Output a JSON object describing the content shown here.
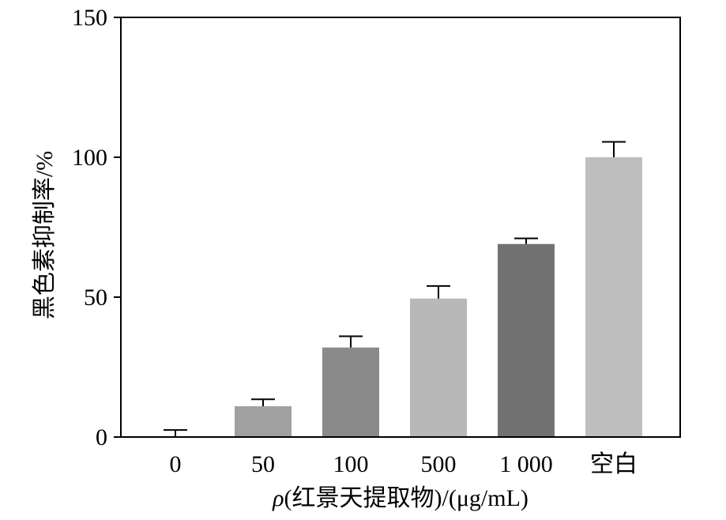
{
  "chart_data": {
    "type": "bar",
    "title": "",
    "xlabel_symbol": "ρ",
    "xlabel_rest": "(红景天提取物)/(μg/mL)",
    "ylabel": "黑色素抑制率/%",
    "ylim": [
      0,
      150
    ],
    "yticks": [
      "0",
      "50",
      "100",
      "150"
    ],
    "categories": [
      "0",
      "50",
      "100",
      "500",
      "1 000",
      "空白"
    ],
    "values": [
      0,
      11,
      32,
      49.5,
      69,
      100
    ],
    "errors": [
      2.5,
      2.5,
      4,
      4.5,
      2,
      5.5
    ],
    "bar_colors": [
      "#a6a6a6",
      "#a0a0a0",
      "#8a8a8a",
      "#b8b8b8",
      "#727272",
      "#bebebe"
    ],
    "grid": false,
    "legend": "none"
  }
}
